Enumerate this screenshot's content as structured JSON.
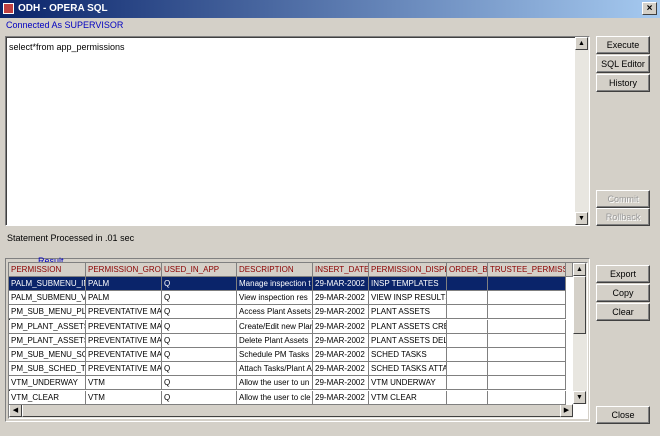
{
  "window": {
    "title": "ODH - OPERA SQL"
  },
  "connection": "Connected As SUPERVISOR",
  "query": "select*from app_permissions",
  "buttons": {
    "execute": "Execute SQL",
    "editor": "SQL Editor",
    "history": "History",
    "commit": "Commit",
    "rollback": "Rollback",
    "export": "Export",
    "copy": "Copy",
    "clear": "Clear",
    "close": "Close"
  },
  "status": "Statement Processed in .01 sec",
  "result": {
    "label": "Result",
    "columns": [
      "PERMISSION",
      "PERMISSION_GROUF",
      "USED_IN_APP",
      "DESCRIPTION",
      "INSERT_DATE",
      "PERMISSION_DISPLA",
      "ORDER_BY",
      "TRUSTEE_PERMISSIO"
    ],
    "rows": [
      [
        "PALM_SUBMENU_IN",
        "PALM",
        "Q",
        "Manage inspection t",
        "29-MAR-2002",
        "INSP TEMPLATES",
        "",
        ""
      ],
      [
        "PALM_SUBMENU_VI",
        "PALM",
        "Q",
        "View inspection res",
        "29-MAR-2002",
        "VIEW INSP RESULTS",
        "",
        ""
      ],
      [
        "PM_SUB_MENU_PLA",
        "PREVENTATIVE MAI",
        "Q",
        "Access Plant Assets",
        "29-MAR-2002",
        "PLANT ASSETS",
        "",
        ""
      ],
      [
        "PM_PLANT_ASSETS",
        "PREVENTATIVE MAI",
        "Q",
        "Create/Edit new Plan",
        "29-MAR-2002",
        "PLANT ASSETS CRE",
        "",
        ""
      ],
      [
        "PM_PLANT_ASSETS",
        "PREVENTATIVE MAI",
        "Q",
        "Delete Plant Assets",
        "29-MAR-2002",
        "PLANT ASSETS DEL",
        "",
        ""
      ],
      [
        "PM_SUB_MENU_SCH",
        "PREVENTATIVE MAI",
        "Q",
        "Schedule PM Tasks",
        "29-MAR-2002",
        "SCHED TASKS",
        "",
        ""
      ],
      [
        "PM_SUB_SCHED_TA",
        "PREVENTATIVE MAI",
        "Q",
        "Attach Tasks/Plant A",
        "29-MAR-2002",
        "SCHED TASKS ATTA",
        "",
        ""
      ],
      [
        "VTM_UNDERWAY",
        "VTM",
        "Q",
        "Allow the user to un",
        "29-MAR-2002",
        "VTM UNDERWAY",
        "",
        ""
      ],
      [
        "VTM_CLEAR",
        "VTM",
        "Q",
        "Allow the user to cle",
        "29-MAR-2002",
        "VTM CLEAR",
        "",
        ""
      ]
    ]
  }
}
